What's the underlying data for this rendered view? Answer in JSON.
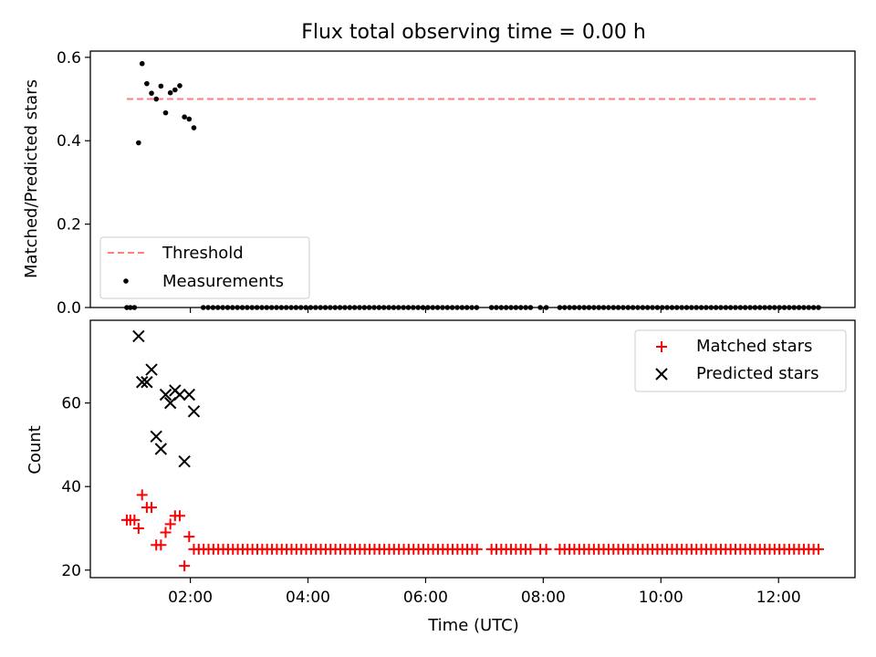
{
  "title": "Flux total observing time = 0.00 h",
  "chart_data": [
    {
      "type": "scatter",
      "ylabel": "Matched/Predicted stars",
      "xlim": [
        0.3,
        13.3
      ],
      "ylim": [
        0,
        0.615
      ],
      "yticks": [
        0.0,
        0.2,
        0.4,
        0.6
      ],
      "ytick_labels": [
        "0.0",
        "0.2",
        "0.4",
        "0.6"
      ],
      "xticks": [
        2,
        4,
        6,
        8,
        10,
        12
      ],
      "grid": false,
      "legend": {
        "placement": "lower-left",
        "entries": [
          "Threshold",
          "Measurements"
        ]
      },
      "threshold": {
        "name": "Threshold",
        "value": 0.5,
        "x_range": [
          0.92,
          12.68
        ],
        "color": "#ff7f7f"
      },
      "measurements": {
        "name": "Measurements",
        "color": "#000000",
        "points": [
          [
            0.92,
            0.0
          ],
          [
            0.98,
            0.0
          ],
          [
            1.05,
            0.0
          ],
          [
            1.12,
            0.395
          ],
          [
            1.18,
            0.585
          ],
          [
            1.26,
            0.537
          ],
          [
            1.34,
            0.514
          ],
          [
            1.42,
            0.5
          ],
          [
            1.5,
            0.531
          ],
          [
            1.58,
            0.467
          ],
          [
            1.66,
            0.515
          ],
          [
            1.74,
            0.522
          ],
          [
            1.82,
            0.532
          ],
          [
            1.9,
            0.457
          ],
          [
            1.98,
            0.452
          ],
          [
            2.06,
            0.431
          ]
        ],
        "zero_segments": [
          [
            2.22,
            6.88,
            0.083
          ],
          [
            7.12,
            7.8,
            0.083
          ],
          [
            7.95,
            8.05,
            0.1
          ],
          [
            8.28,
            12.68,
            0.083
          ]
        ]
      }
    },
    {
      "type": "scatter",
      "xlabel": "Time (UTC)",
      "ylabel": "Count",
      "xlim": [
        0.3,
        13.3
      ],
      "ylim": [
        18.2,
        79.8
      ],
      "yticks": [
        20,
        40,
        60
      ],
      "ytick_labels": [
        "20",
        "40",
        "60"
      ],
      "xticks": [
        2,
        4,
        6,
        8,
        10,
        12
      ],
      "xtick_labels": [
        "02:00",
        "04:00",
        "06:00",
        "08:00",
        "10:00",
        "12:00"
      ],
      "grid": false,
      "legend": {
        "placement": "top-right",
        "entries": [
          "Matched stars",
          "Predicted stars"
        ]
      },
      "series": [
        {
          "name": "Matched stars",
          "marker": "plus",
          "color": "#ff0000",
          "points": [
            [
              0.92,
              32
            ],
            [
              0.98,
              32
            ],
            [
              1.05,
              32
            ],
            [
              1.12,
              30
            ],
            [
              1.18,
              38
            ],
            [
              1.26,
              35
            ],
            [
              1.34,
              35
            ],
            [
              1.42,
              26
            ],
            [
              1.5,
              26
            ],
            [
              1.58,
              29
            ],
            [
              1.66,
              31
            ],
            [
              1.74,
              33
            ],
            [
              1.82,
              33
            ],
            [
              1.9,
              21
            ],
            [
              1.98,
              28
            ]
          ],
          "flat_segments": [
            [
              2.06,
              6.88,
              0.083,
              25
            ],
            [
              7.12,
              7.8,
              0.083,
              25
            ],
            [
              7.95,
              8.05,
              0.1,
              25
            ],
            [
              8.28,
              12.68,
              0.083,
              25
            ]
          ]
        },
        {
          "name": "Predicted stars",
          "marker": "x",
          "color": "#000000",
          "points": [
            [
              1.12,
              76
            ],
            [
              1.18,
              65
            ],
            [
              1.26,
              65
            ],
            [
              1.34,
              68
            ],
            [
              1.42,
              52
            ],
            [
              1.5,
              49
            ],
            [
              1.58,
              62
            ],
            [
              1.66,
              60
            ],
            [
              1.74,
              63
            ],
            [
              1.82,
              62
            ],
            [
              1.9,
              46
            ],
            [
              1.98,
              62
            ],
            [
              2.06,
              58
            ]
          ]
        }
      ]
    }
  ]
}
